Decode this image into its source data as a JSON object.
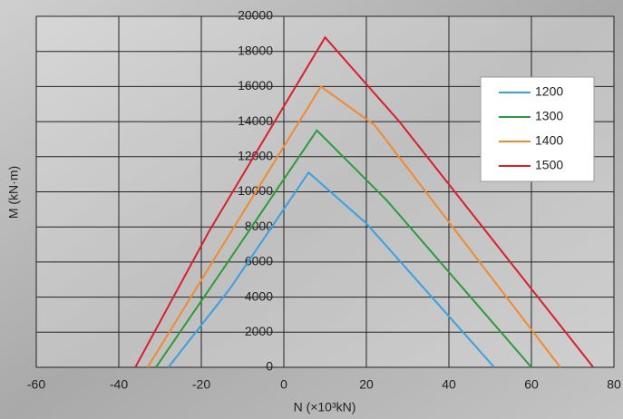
{
  "chart_data": {
    "type": "line",
    "xlabel": "N (×10³kN)",
    "ylabel": "M (kN·m)",
    "xlim": [
      -60,
      80
    ],
    "xticks": [
      -60,
      -40,
      -20,
      0,
      20,
      40,
      60,
      80
    ],
    "ylim": [
      0,
      20000
    ],
    "yticks": [
      0,
      2000,
      4000,
      6000,
      8000,
      10000,
      12000,
      14000,
      16000,
      18000,
      20000
    ],
    "grid": true,
    "legend": "upper right",
    "series": [
      {
        "name": "1200",
        "color": "#3aa0e0",
        "x": [
          -28,
          -13,
          6,
          20,
          51
        ],
        "values": [
          0,
          4500,
          11100,
          8200,
          0
        ]
      },
      {
        "name": "1300",
        "color": "#2e9a3c",
        "x": [
          -31,
          -15,
          8,
          25,
          60
        ],
        "values": [
          0,
          5500,
          13500,
          9500,
          0
        ]
      },
      {
        "name": "1400",
        "color": "#f08a30",
        "x": [
          -33,
          -16,
          9,
          22,
          67
        ],
        "values": [
          0,
          6500,
          16000,
          13800,
          0
        ]
      },
      {
        "name": "1500",
        "color": "#d8202a",
        "x": [
          -36,
          -18,
          10,
          28,
          75
        ],
        "values": [
          0,
          7800,
          18800,
          14000,
          0
        ]
      }
    ]
  }
}
